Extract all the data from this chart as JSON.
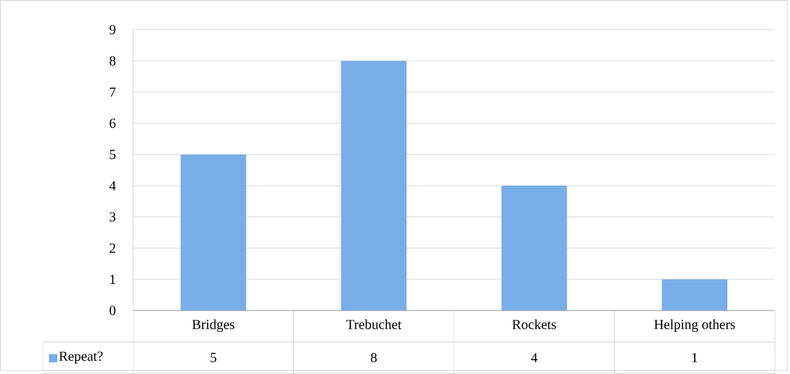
{
  "chart_data": {
    "type": "bar",
    "categories": [
      "Bridges",
      "Trebuchet",
      "Rockets",
      "Helping others"
    ],
    "series": [
      {
        "name": "Repeat?",
        "color": "#78aee8",
        "values": [
          5,
          8,
          4,
          1
        ]
      }
    ],
    "ylim": [
      0,
      9
    ],
    "yticks": [
      0,
      1,
      2,
      3,
      4,
      5,
      6,
      7,
      8,
      9
    ],
    "grid": "y",
    "legend": "bottom left",
    "data_labels": true
  }
}
